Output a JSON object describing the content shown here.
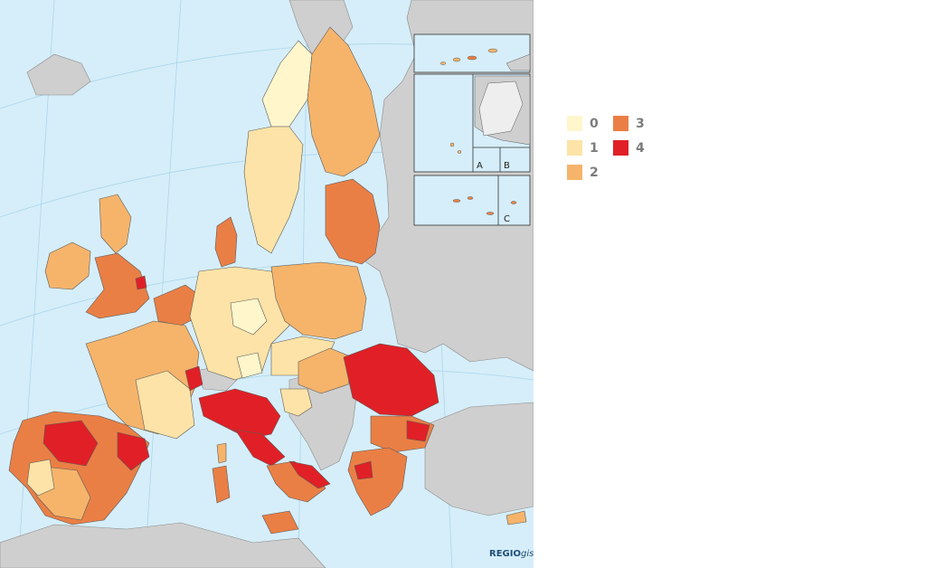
{
  "colors": {
    "sea": "#d6eef9",
    "non_eu_land": "#cfcfcf",
    "outline": "#5a5a5a",
    "grid": "#aad6ec",
    "class_0": "#fff6cc",
    "class_1": "#fde3a7",
    "class_2": "#f6b46b",
    "class_3": "#ea7f45",
    "class_4": "#e02026"
  },
  "legend": {
    "items": [
      {
        "label": "0",
        "color": "#fff6cc"
      },
      {
        "label": "1",
        "color": "#fde3a7"
      },
      {
        "label": "2",
        "color": "#f6b46b"
      },
      {
        "label": "3",
        "color": "#ea7f45"
      },
      {
        "label": "4",
        "color": "#e02026"
      }
    ]
  },
  "insets": {
    "labels": [
      "A",
      "B",
      "C"
    ]
  },
  "brand": {
    "main": "REGIO",
    "suffix": "gis"
  }
}
